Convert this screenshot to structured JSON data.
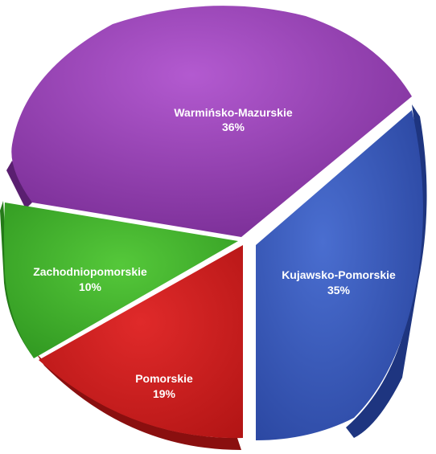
{
  "chart_data": {
    "type": "pie",
    "title": "",
    "slices": [
      {
        "label": "Warmińsko-Mazurskie",
        "value": 36,
        "value_label": "36%",
        "color": "#8e3aa8"
      },
      {
        "label": "Kujawsko-Pomorskie",
        "value": 35,
        "value_label": "35%",
        "color": "#3656b3"
      },
      {
        "label": "Pomorskie",
        "value": 19,
        "value_label": "19%",
        "color": "#cc1f1f"
      },
      {
        "label": "Zachodniopomorskie",
        "value": 10,
        "value_label": "10%",
        "color": "#3fae2a"
      }
    ],
    "legend": "none",
    "style": "3d-exploded"
  }
}
